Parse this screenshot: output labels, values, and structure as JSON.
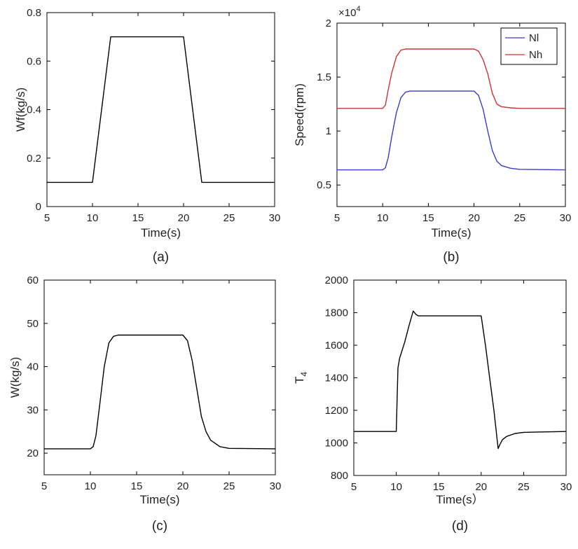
{
  "figure": {
    "panels": [
      {
        "caption": "(a)"
      },
      {
        "caption": "(b)"
      },
      {
        "caption": "(c)"
      },
      {
        "caption": "(d)"
      }
    ]
  },
  "chart_data": [
    {
      "type": "line",
      "caption": "(a)",
      "title": "",
      "xlabel": "Time(s)",
      "ylabel": "Wf(kg/s)",
      "xlim": [
        5,
        30
      ],
      "ylim": [
        0,
        0.8
      ],
      "xticks": [
        5,
        10,
        15,
        20,
        25,
        30
      ],
      "yticks": [
        0,
        0.2,
        0.4,
        0.6,
        0.8
      ],
      "yticklabels": [
        "0",
        "0.2",
        "0.4",
        "0.6",
        "0.8"
      ],
      "series": [
        {
          "name": "Wf",
          "color": "#000000",
          "x": [
            5,
            10,
            12,
            20,
            22,
            30
          ],
          "y": [
            0.1,
            0.1,
            0.7,
            0.7,
            0.1,
            0.1
          ]
        }
      ]
    },
    {
      "type": "line",
      "caption": "(b)",
      "title": "",
      "xlabel": "Time(s)",
      "ylabel": "Speed(rpm)",
      "exponent_base": "×10",
      "exponent_power": "4",
      "xlim": [
        5,
        30
      ],
      "ylim": [
        0.3,
        2.0
      ],
      "xticks": [
        5,
        10,
        15,
        20,
        25,
        30
      ],
      "yticks": [
        0.5,
        1.0,
        1.5,
        2.0
      ],
      "yticklabels": [
        "0.5",
        "1",
        "1.5",
        "2"
      ],
      "legend": {
        "position": "top-right",
        "entries": [
          "Nl",
          "Nh"
        ]
      },
      "series": [
        {
          "name": "Nl",
          "color": "#3b3bcc",
          "x": [
            5,
            10,
            10.3,
            10.6,
            11,
            11.5,
            12,
            12.5,
            13,
            20,
            20.5,
            21,
            21.5,
            22,
            22.5,
            23,
            24,
            25,
            30
          ],
          "y": [
            0.64,
            0.64,
            0.66,
            0.75,
            0.95,
            1.17,
            1.31,
            1.36,
            1.37,
            1.37,
            1.33,
            1.2,
            1.0,
            0.82,
            0.72,
            0.68,
            0.655,
            0.645,
            0.64
          ]
        },
        {
          "name": "Nh",
          "color": "#cc3333",
          "x": [
            5,
            10,
            10.3,
            10.6,
            11,
            11.5,
            12,
            12.5,
            13,
            20,
            20.5,
            21,
            21.5,
            22,
            22.5,
            23,
            24,
            25,
            30
          ],
          "y": [
            1.21,
            1.21,
            1.24,
            1.38,
            1.54,
            1.69,
            1.75,
            1.76,
            1.76,
            1.76,
            1.74,
            1.66,
            1.53,
            1.35,
            1.25,
            1.225,
            1.215,
            1.21,
            1.21
          ]
        }
      ]
    },
    {
      "type": "line",
      "caption": "(c)",
      "title": "",
      "xlabel": "Time(s)",
      "ylabel": "W(kg/s)",
      "xlim": [
        5,
        30
      ],
      "ylim": [
        15,
        60
      ],
      "xticks": [
        5,
        10,
        15,
        20,
        25,
        30
      ],
      "yticks": [
        20,
        30,
        40,
        50,
        60
      ],
      "yticklabels": [
        "20",
        "30",
        "40",
        "50",
        "60"
      ],
      "series": [
        {
          "name": "W",
          "color": "#000000",
          "x": [
            5,
            10,
            10.3,
            10.6,
            11,
            11.5,
            12,
            12.5,
            13,
            20,
            20.5,
            21,
            21.5,
            22,
            22.5,
            23,
            24,
            25,
            30
          ],
          "y": [
            21,
            21,
            21.5,
            24,
            31,
            40,
            45.5,
            47,
            47.3,
            47.3,
            46,
            41.5,
            35,
            28.5,
            25,
            23,
            21.5,
            21.1,
            21
          ]
        }
      ]
    },
    {
      "type": "line",
      "caption": "(d)",
      "title": "",
      "xlabel": "Time(s）",
      "ylabel": "T",
      "ylabel_sub": "4",
      "xlim": [
        5,
        30
      ],
      "ylim": [
        800,
        2000
      ],
      "xticks": [
        5,
        10,
        15,
        20,
        25,
        30
      ],
      "yticks": [
        800,
        1000,
        1200,
        1400,
        1600,
        1800,
        2000
      ],
      "yticklabels": [
        "800",
        "1000",
        "1200",
        "1400",
        "1600",
        "1800",
        "2000"
      ],
      "series": [
        {
          "name": "T4",
          "color": "#000000",
          "x": [
            5,
            10,
            10.2,
            10.4,
            11,
            11.5,
            12,
            12.3,
            12.6,
            13,
            20,
            20.5,
            21,
            21.5,
            22,
            22.2,
            22.5,
            23,
            24,
            25,
            30
          ],
          "y": [
            1070,
            1070,
            1460,
            1520,
            1620,
            1720,
            1810,
            1790,
            1780,
            1780,
            1780,
            1600,
            1400,
            1200,
            965,
            990,
            1020,
            1040,
            1058,
            1065,
            1070
          ]
        }
      ]
    }
  ]
}
